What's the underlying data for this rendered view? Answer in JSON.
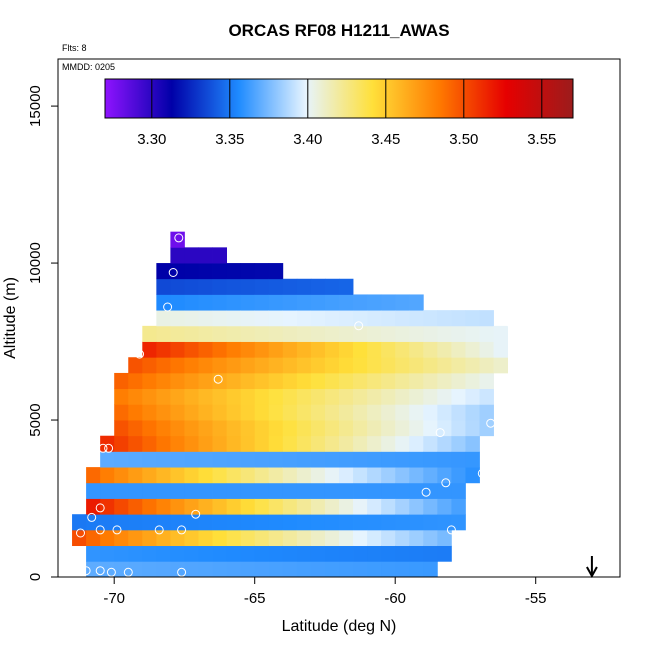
{
  "chart_data": {
    "type": "heatmap",
    "title": "ORCAS RF08 H1211_AWAS",
    "annotation_flts": "Flts: 8",
    "annotation_mmdd": "MMDD: 0205",
    "xlabel": "Latitude (deg N)",
    "ylabel": "Altitude (m)",
    "xlim": [
      -72,
      -52
    ],
    "ylim": [
      0,
      16500
    ],
    "xticks": [
      -70,
      -65,
      -60,
      -55
    ],
    "yticks": [
      0,
      5000,
      10000,
      15000
    ],
    "colorbar": {
      "range": [
        3.27,
        3.57
      ],
      "ticks": [
        3.3,
        3.35,
        3.4,
        3.45,
        3.5,
        3.55
      ],
      "tick_labels": [
        "3.30",
        "3.35",
        "3.40",
        "3.45",
        "3.50",
        "3.55"
      ],
      "colors": [
        "#8f13ff",
        "#0000a8",
        "#1f8bff",
        "#e6f4ff",
        "#ffe03a",
        "#ff7a00",
        "#e60000",
        "#9c1c1c"
      ]
    },
    "latitude_bins": [
      -71.25,
      -70.75,
      -70.25,
      -69.75,
      -69.25,
      -68.75,
      -68.25,
      -67.75,
      -67.25,
      -66.75,
      -66.25,
      -65.75,
      -65.25,
      -64.75,
      -64.25,
      -63.75,
      -63.25,
      -62.75,
      -62.25,
      -61.75,
      -61.25,
      -60.75,
      -60.25,
      -59.75,
      -59.25,
      -58.75,
      -58.25,
      -57.75,
      -57.25,
      -56.75,
      -56.25
    ],
    "altitude_bins": [
      250,
      750,
      1250,
      1750,
      2250,
      2750,
      3250,
      3750,
      4250,
      4750,
      5250,
      5750,
      6250,
      6750,
      7250,
      7750,
      8250,
      8750,
      9250,
      9750,
      10250,
      10750
    ],
    "profile_top_altitude": [
      1800,
      3600,
      4300,
      6400,
      7000,
      7800,
      10200,
      10900,
      10700,
      10600,
      10400,
      10100,
      10100,
      10000,
      9800,
      9600,
      9600,
      9500,
      9400,
      9300,
      9200,
      9100,
      9000,
      8900,
      8800,
      8700,
      8600,
      8500,
      8400,
      8300,
      8100
    ],
    "profile_bottom_altitude": [
      1200,
      0,
      0,
      0,
      0,
      0,
      0,
      0,
      0,
      0,
      0,
      0,
      0,
      0,
      0,
      0,
      0,
      0,
      0,
      0,
      0,
      0,
      0,
      0,
      0,
      0,
      300,
      1500,
      3000,
      4300,
      6700
    ],
    "mixing_ratio_by_altitude_south": [
      3.37,
      3.36,
      3.5,
      3.35,
      3.53,
      3.36,
      3.5,
      3.37,
      3.53,
      3.52,
      3.51,
      3.5,
      3.51,
      3.52,
      3.55,
      3.43,
      3.41,
      3.35,
      3.33,
      3.31,
      3.3,
      3.28
    ],
    "mixing_ratio_by_altitude_north": [
      3.36,
      3.35,
      3.36,
      3.36,
      3.35,
      3.36,
      3.35,
      3.36,
      3.37,
      3.38,
      3.38,
      3.39,
      3.4,
      3.41,
      3.4,
      3.4,
      3.39,
      3.37,
      3.35,
      3.32,
      3.3,
      3.28
    ],
    "sample_points": [
      {
        "lat": -71.2,
        "alt": 1400
      },
      {
        "lat": -70.8,
        "alt": 1900
      },
      {
        "lat": -70.5,
        "alt": 1500
      },
      {
        "lat": -70.5,
        "alt": 2200
      },
      {
        "lat": -70.4,
        "alt": 4100
      },
      {
        "lat": -70.2,
        "alt": 4100
      },
      {
        "lat": -69.9,
        "alt": 1500
      },
      {
        "lat": -69.1,
        "alt": 7100
      },
      {
        "lat": -68.4,
        "alt": 1500
      },
      {
        "lat": -67.9,
        "alt": 9700
      },
      {
        "lat": -67.7,
        "alt": 10800
      },
      {
        "lat": -68.1,
        "alt": 8600
      },
      {
        "lat": -67.1,
        "alt": 2000
      },
      {
        "lat": -67.6,
        "alt": 1500
      },
      {
        "lat": -66.3,
        "alt": 6300
      },
      {
        "lat": -61.3,
        "alt": 8000
      },
      {
        "lat": -58.9,
        "alt": 2700
      },
      {
        "lat": -58.4,
        "alt": 4600
      },
      {
        "lat": -58.2,
        "alt": 3000
      },
      {
        "lat": -58.0,
        "alt": 1500
      },
      {
        "lat": -57.7,
        "alt": 300
      },
      {
        "lat": -57.6,
        "alt": 300
      },
      {
        "lat": -57.3,
        "alt": 1700
      },
      {
        "lat": -56.9,
        "alt": 3300
      },
      {
        "lat": -56.6,
        "alt": 4900
      },
      {
        "lat": -55.9,
        "alt": 8100
      },
      {
        "lat": -71.0,
        "alt": 200
      },
      {
        "lat": -70.5,
        "alt": 200
      },
      {
        "lat": -70.1,
        "alt": 150
      },
      {
        "lat": -69.5,
        "alt": 150
      },
      {
        "lat": -67.6,
        "alt": 150
      }
    ],
    "arrow_latitude": -53.0,
    "grid": false,
    "legend": "colorbar top"
  }
}
